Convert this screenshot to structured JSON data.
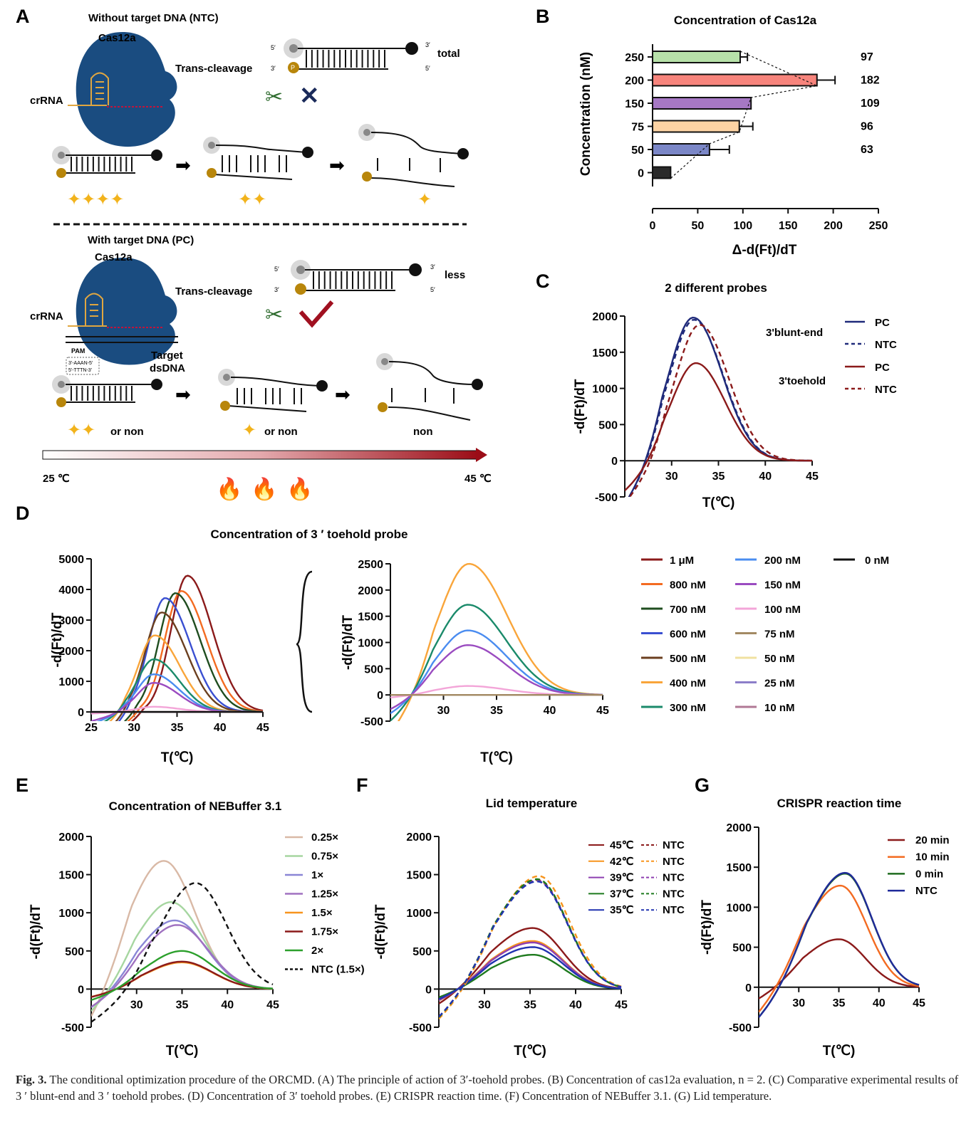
{
  "caption": {
    "label": "Fig. 3.",
    "text": "The conditional optimization procedure of the ORCMD. (A) The principle of action of 3′-toehold probes. (B) Concentration of cas12a evaluation, n = 2. (C) Comparative experimental results of 3 ′ blunt-end and 3 ′ toehold probes. (D) Concentration of 3′ toehold probes. (E) CRISPR reaction time. (F) Concentration of NEBuffer 3.1. (G) Lid temperature."
  },
  "panelA": {
    "letter": "A",
    "ntc_title": "Without target DNA (NTC)",
    "pc_title": "With target DNA (PC)",
    "cas": "Cas12a",
    "crrna": "crRNA",
    "trans": "Trans-cleavage",
    "total": "total",
    "less": "less",
    "or_non": "or non",
    "non": "non",
    "pam": "PAM",
    "target": "Target",
    "dsdna": "dsDNA",
    "pam_top": "3'-AAAN-5'",
    "pam_bot": "5'-TTTN-3'",
    "p": "P",
    "five": "5′",
    "three": "3′",
    "t_low": "25 ℃",
    "t_high": "45 ℃"
  },
  "chart_data": [
    {
      "panel": "B",
      "type": "bar",
      "title": "Concentration of Cas12a",
      "ylabel": "Concentration (nM)",
      "xlabel": "Δ-d(Ft)/dT",
      "categories": [
        "250",
        "200",
        "150",
        "75",
        "50",
        "0"
      ],
      "values": [
        97,
        182,
        109,
        96,
        63,
        20
      ],
      "errors": [
        8,
        20,
        0,
        15,
        22,
        0
      ],
      "data_labels": [
        "97",
        "182",
        "109",
        "96",
        "63",
        ""
      ],
      "colors": [
        "#b7e1a9",
        "#f7847c",
        "#a678c4",
        "#fcd3a4",
        "#7b87c7",
        "#2a2a2a"
      ],
      "xlim": [
        0,
        250
      ],
      "xticks": [
        "0",
        "50",
        "100",
        "150",
        "200",
        "250"
      ]
    },
    {
      "panel": "C",
      "type": "line",
      "title": "2 different probes",
      "xlabel": "T(℃)",
      "ylabel": "-d(Ft)/dT",
      "xlim": [
        25,
        45
      ],
      "ylim": [
        -500,
        2000
      ],
      "xticks": [
        "30",
        "35",
        "40",
        "45"
      ],
      "yticks": [
        "-500",
        "0",
        "500",
        "1000",
        "1500",
        "2000"
      ],
      "group_labels": [
        "3'blunt-end",
        "3'toehold"
      ],
      "series": [
        {
          "name": "PC",
          "group": "3'blunt-end",
          "color": "#1f2a7a",
          "dash": false,
          "peak_x": 32.3,
          "peak_y": 1980
        },
        {
          "name": "NTC",
          "group": "3'blunt-end",
          "color": "#1f2a7a",
          "dash": true,
          "peak_x": 32.4,
          "peak_y": 1950
        },
        {
          "name": "PC",
          "group": "3'toehold",
          "color": "#8b1a1a",
          "dash": false,
          "peak_x": 32.6,
          "peak_y": 1350
        },
        {
          "name": "NTC",
          "group": "3'toehold",
          "color": "#8b1a1a",
          "dash": true,
          "peak_x": 33.0,
          "peak_y": 1880
        }
      ]
    },
    {
      "panel": "D",
      "type": "line",
      "title": "Concentration of 3 ′ toehold probe",
      "xlabel": "T(℃)",
      "ylabel": "-d(Ft)/dT",
      "left": {
        "xlim": [
          25,
          45
        ],
        "ylim": [
          -300,
          5000
        ],
        "xticks": [
          "25",
          "30",
          "35",
          "40",
          "45"
        ],
        "yticks": [
          "0",
          "1000",
          "2000",
          "3000",
          "4000",
          "5000"
        ]
      },
      "right": {
        "xlim": [
          25,
          45
        ],
        "ylim": [
          -500,
          2500
        ],
        "xticks": [
          "30",
          "35",
          "40",
          "45"
        ],
        "yticks": [
          "-500",
          "0",
          "500",
          "1000",
          "1500",
          "2000",
          "2500"
        ]
      },
      "series": [
        {
          "name": "1 μM",
          "color": "#8b1a1a",
          "peak_x": 36.2,
          "peak_y": 4450
        },
        {
          "name": "800 nM",
          "color": "#f36b21",
          "peak_x": 35.5,
          "peak_y": 3950
        },
        {
          "name": "700 nM",
          "color": "#1f4d1f",
          "peak_x": 34.8,
          "peak_y": 3880
        },
        {
          "name": "600 nM",
          "color": "#3a4fd1",
          "peak_x": 33.6,
          "peak_y": 3720
        },
        {
          "name": "500 nM",
          "color": "#6b3f1f",
          "peak_x": 33.2,
          "peak_y": 3250
        },
        {
          "name": "400 nM",
          "color": "#f9a53a",
          "peak_x": 32.4,
          "peak_y": 2500
        },
        {
          "name": "300 nM",
          "color": "#1a8a6a",
          "peak_x": 32.3,
          "peak_y": 1720
        },
        {
          "name": "200 nM",
          "color": "#4a8cf0",
          "peak_x": 32.3,
          "peak_y": 1230
        },
        {
          "name": "150 nM",
          "color": "#9a4bc0",
          "peak_x": 32.3,
          "peak_y": 950
        },
        {
          "name": "100 nM",
          "color": "#f3a5d8",
          "peak_x": 32.3,
          "peak_y": 170
        },
        {
          "name": "75 nM",
          "color": "#a38a63",
          "peak_x": 32.3,
          "peak_y": 0
        },
        {
          "name": "50 nM",
          "color": "#f0e1a0",
          "peak_x": 32.3,
          "peak_y": 0
        },
        {
          "name": "25 nM",
          "color": "#8c7ec9",
          "peak_x": 32.3,
          "peak_y": 0
        },
        {
          "name": "10 nM",
          "color": "#b07895",
          "peak_x": 32.3,
          "peak_y": 0
        },
        {
          "name": "0 nM",
          "color": "#111111",
          "peak_x": 32.3,
          "peak_y": 0
        }
      ]
    },
    {
      "panel": "E",
      "type": "line",
      "title": "Concentration of NEBuffer 3.1",
      "xlabel": "T(℃)",
      "ylabel": "-d(Ft)/dT",
      "xlim": [
        25,
        45
      ],
      "ylim": [
        -500,
        2000
      ],
      "xticks": [
        "30",
        "35",
        "40",
        "45"
      ],
      "yticks": [
        "-500",
        "0",
        "500",
        "1000",
        "1500",
        "2000"
      ],
      "series": [
        {
          "name": "0.25×",
          "color": "#d9b9a6",
          "dash": false,
          "peak_x": 33.0,
          "peak_y": 1680
        },
        {
          "name": "0.75×",
          "color": "#a6d6a0",
          "dash": false,
          "peak_x": 33.8,
          "peak_y": 1140
        },
        {
          "name": "1×",
          "color": "#8a86d6",
          "dash": false,
          "peak_x": 34.2,
          "peak_y": 900
        },
        {
          "name": "1.25×",
          "color": "#a071c0",
          "dash": false,
          "peak_x": 34.5,
          "peak_y": 840
        },
        {
          "name": "1.5×",
          "color": "#f7941d",
          "dash": false,
          "peak_x": 35.0,
          "peak_y": 350
        },
        {
          "name": "1.75×",
          "color": "#8b1a1a",
          "dash": false,
          "peak_x": 35.0,
          "peak_y": 360
        },
        {
          "name": "2×",
          "color": "#2ca02c",
          "dash": false,
          "peak_x": 35.0,
          "peak_y": 500
        },
        {
          "name": "NTC (1.5×)",
          "color": "#111111",
          "dash": true,
          "peak_x": 36.5,
          "peak_y": 1390
        }
      ]
    },
    {
      "panel": "F",
      "type": "line",
      "title": "Lid temperature",
      "xlabel": "T(℃)",
      "ylabel": "-d(Ft)/dT",
      "xlim": [
        25,
        45
      ],
      "ylim": [
        -500,
        2000
      ],
      "xticks": [
        "30",
        "35",
        "40",
        "45"
      ],
      "yticks": [
        "-500",
        "0",
        "500",
        "1000",
        "1500",
        "2000"
      ],
      "series": [
        {
          "name": "45℃",
          "color": "#8b1a1a",
          "dash": false,
          "peak_x": 35.3,
          "peak_y": 800
        },
        {
          "name": "42℃",
          "color": "#f7941d",
          "dash": false,
          "peak_x": 35.3,
          "peak_y": 630
        },
        {
          "name": "39℃",
          "color": "#8e3fb0",
          "dash": false,
          "peak_x": 35.3,
          "peak_y": 610
        },
        {
          "name": "37℃",
          "color": "#1e7a1e",
          "dash": false,
          "peak_x": 35.3,
          "peak_y": 450
        },
        {
          "name": "35℃",
          "color": "#2033b0",
          "dash": false,
          "peak_x": 35.3,
          "peak_y": 550
        },
        {
          "name": "NTC",
          "color": "#8b1a1a",
          "dash": true,
          "peak_x": 35.8,
          "peak_y": 1430
        },
        {
          "name": "NTC",
          "color": "#f7941d",
          "dash": true,
          "peak_x": 36.0,
          "peak_y": 1480
        },
        {
          "name": "NTC",
          "color": "#8e3fb0",
          "dash": true,
          "peak_x": 35.8,
          "peak_y": 1420
        },
        {
          "name": "NTC",
          "color": "#1e7a1e",
          "dash": true,
          "peak_x": 35.8,
          "peak_y": 1440
        },
        {
          "name": "NTC",
          "color": "#2033b0",
          "dash": true,
          "peak_x": 35.8,
          "peak_y": 1410
        }
      ]
    },
    {
      "panel": "G",
      "type": "line",
      "title": "CRISPR reaction time",
      "xlabel": "T(℃)",
      "ylabel": "-d(Ft)/dT",
      "xlim": [
        25,
        45
      ],
      "ylim": [
        -500,
        2000
      ],
      "xticks": [
        "30",
        "35",
        "40",
        "45"
      ],
      "yticks": [
        "-500",
        "0",
        "500",
        "1000",
        "1500",
        "2000"
      ],
      "series": [
        {
          "name": "20 min",
          "color": "#8b1a1a",
          "peak_x": 35.0,
          "peak_y": 600
        },
        {
          "name": "10 min",
          "color": "#f36b21",
          "peak_x": 35.2,
          "peak_y": 1270
        },
        {
          "name": "0 min",
          "color": "#1e6b1e",
          "peak_x": 35.8,
          "peak_y": 1420
        },
        {
          "name": "NTC",
          "color": "#1f2a9a",
          "peak_x": 35.8,
          "peak_y": 1430
        }
      ]
    }
  ]
}
